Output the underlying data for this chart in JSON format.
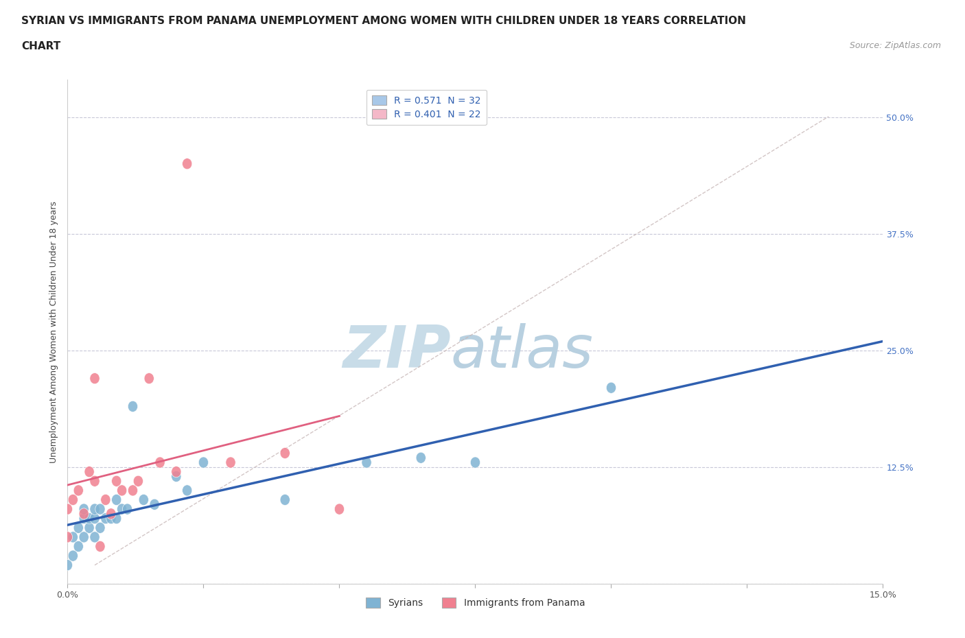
{
  "title_line1": "SYRIAN VS IMMIGRANTS FROM PANAMA UNEMPLOYMENT AMONG WOMEN WITH CHILDREN UNDER 18 YEARS CORRELATION",
  "title_line2": "CHART",
  "source": "Source: ZipAtlas.com",
  "ylabel": "Unemployment Among Women with Children Under 18 years",
  "xlim": [
    0.0,
    0.15
  ],
  "ylim": [
    0.0,
    0.54
  ],
  "legend_entries": [
    {
      "label": "R = 0.571  N = 32",
      "color": "#a8c8e8"
    },
    {
      "label": "R = 0.401  N = 22",
      "color": "#f4b8c8"
    }
  ],
  "syrians_x": [
    0.0,
    0.001,
    0.001,
    0.002,
    0.002,
    0.003,
    0.003,
    0.003,
    0.004,
    0.004,
    0.005,
    0.005,
    0.005,
    0.006,
    0.006,
    0.007,
    0.008,
    0.009,
    0.009,
    0.01,
    0.011,
    0.012,
    0.014,
    0.016,
    0.02,
    0.022,
    0.025,
    0.04,
    0.055,
    0.065,
    0.075,
    0.1
  ],
  "syrians_y": [
    0.02,
    0.03,
    0.05,
    0.04,
    0.06,
    0.05,
    0.07,
    0.08,
    0.06,
    0.07,
    0.05,
    0.07,
    0.08,
    0.06,
    0.08,
    0.07,
    0.07,
    0.07,
    0.09,
    0.08,
    0.08,
    0.19,
    0.09,
    0.085,
    0.115,
    0.1,
    0.13,
    0.09,
    0.13,
    0.135,
    0.13,
    0.21
  ],
  "panama_x": [
    0.0,
    0.0,
    0.001,
    0.002,
    0.003,
    0.004,
    0.005,
    0.005,
    0.006,
    0.007,
    0.008,
    0.009,
    0.01,
    0.012,
    0.013,
    0.015,
    0.017,
    0.02,
    0.022,
    0.03,
    0.04,
    0.05
  ],
  "panama_y": [
    0.05,
    0.08,
    0.09,
    0.1,
    0.075,
    0.12,
    0.11,
    0.22,
    0.04,
    0.09,
    0.075,
    0.11,
    0.1,
    0.1,
    0.11,
    0.22,
    0.13,
    0.12,
    0.45,
    0.13,
    0.14,
    0.08
  ],
  "syrian_color": "#7fb3d3",
  "panama_color": "#f08090",
  "syrian_line_color": "#3060b0",
  "panama_line_color": "#e06080",
  "diagonal_color": "#c8b8b8",
  "background_color": "#ffffff",
  "grid_color": "#c8c8d8",
  "watermark_zip": "ZIP",
  "watermark_atlas": "atlas",
  "watermark_color_zip": "#c8dce8",
  "watermark_color_atlas": "#b8d0e0",
  "title_fontsize": 11,
  "source_fontsize": 9,
  "tick_label_color_y": "#4472c4",
  "tick_label_color_x": "#555555"
}
